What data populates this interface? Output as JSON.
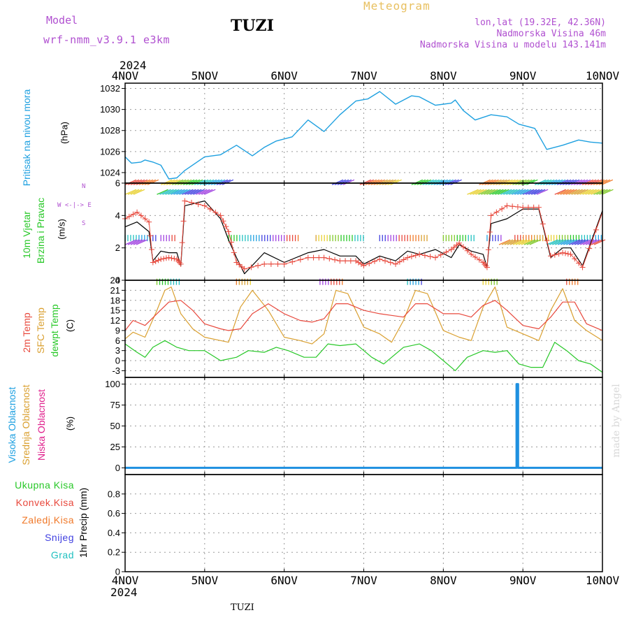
{
  "header": {
    "model_label": "Model",
    "model_name": "wrf-nmm_v3.9.1 e3km",
    "station": "TUZI",
    "product": "Meteogram",
    "coords": "lon,lat (19.32E, 42.36N)",
    "elevation": "Nadmorska Visina 46m",
    "model_elevation": "Nadmorska Visina u modelu 143.141m",
    "footer_station": "TUZI",
    "credit": "made by Angel"
  },
  "time_axis": {
    "year": "2024",
    "days": [
      "4NOV",
      "5NOV",
      "6NOV",
      "7NOV",
      "8NOV",
      "9NOV",
      "10NOV"
    ]
  },
  "colors": {
    "pressure": "#1ea0e0",
    "t2m": "#e8483c",
    "sfc": "#daa030",
    "dewpt": "#28c828",
    "wind_speed": "#000000",
    "gust": "#e8483c",
    "high_cloud": "#1e90e0",
    "mid_cloud": "#daa030",
    "low_cloud": "#e0208c",
    "total_precip": "#28c828",
    "conv_precip": "#e8483c",
    "frz_precip": "#f07828",
    "snow": "#4040e0",
    "hail": "#20c0c0"
  },
  "chart_data": [
    {
      "type": "line",
      "panel": "pressure",
      "ylabel_lines": [
        "Pritisak na nivou mora"
      ],
      "unit": "(hPa)",
      "ylim": [
        1023,
        1032.5
      ],
      "yticks": [
        1024,
        1026,
        1028,
        1030,
        1032
      ],
      "grid": true,
      "series": [
        {
          "x": [
            0,
            0.08,
            0.2,
            0.25,
            0.35,
            0.45,
            0.55,
            0.65,
            0.75,
            1.0,
            1.2,
            1.4,
            1.6,
            1.75,
            1.9,
            2.1,
            2.3,
            2.5,
            2.7,
            2.9,
            3.05,
            3.2,
            3.4,
            3.6,
            3.7,
            3.9,
            4.1,
            4.15,
            4.25,
            4.4,
            4.6,
            4.8,
            4.95,
            5.15,
            5.3,
            5.5,
            5.7,
            5.85,
            6.0
          ],
          "y": [
            1025.5,
            1024.9,
            1025.0,
            1025.2,
            1025.0,
            1024.7,
            1023.4,
            1023.5,
            1024.2,
            1025.5,
            1025.7,
            1026.6,
            1025.6,
            1026.4,
            1027.0,
            1027.4,
            1029.0,
            1027.9,
            1029.5,
            1030.8,
            1031.0,
            1031.7,
            1030.5,
            1031.3,
            1031.2,
            1030.4,
            1030.6,
            1030.9,
            1029.9,
            1029.0,
            1029.5,
            1029.3,
            1028.6,
            1028.2,
            1026.2,
            1026.6,
            1027.1,
            1026.9,
            1026.8
          ]
        }
      ]
    },
    {
      "type": "line",
      "panel": "wind",
      "ylabel_lines": [
        "10m Vjetar",
        "Brzina i Pravac"
      ],
      "unit": "(m/s)",
      "compass": [
        "N",
        "W <-|-> E",
        "S"
      ],
      "ylim": [
        0,
        6
      ],
      "yticks": [
        0,
        2,
        4,
        6
      ],
      "grid": true,
      "series": [
        {
          "name": "speed",
          "x": [
            0,
            0.15,
            0.3,
            0.35,
            0.45,
            0.55,
            0.65,
            0.7,
            0.75,
            1.0,
            1.2,
            1.3,
            1.4,
            1.5,
            1.75,
            2.0,
            2.3,
            2.5,
            2.7,
            2.9,
            3.0,
            3.2,
            3.4,
            3.55,
            3.7,
            3.9,
            4.1,
            4.2,
            4.35,
            4.5,
            4.55,
            4.6,
            4.8,
            5.0,
            5.2,
            5.35,
            5.5,
            5.6,
            5.75,
            6.0
          ],
          "y": [
            3.3,
            3.6,
            3.0,
            1.2,
            1.8,
            1.7,
            1.7,
            0.9,
            4.6,
            4.9,
            3.8,
            2.5,
            1.4,
            0.4,
            1.7,
            1.1,
            1.7,
            1.9,
            1.5,
            1.5,
            1.0,
            1.5,
            1.2,
            1.8,
            1.6,
            1.9,
            1.4,
            2.2,
            1.8,
            1.6,
            0.8,
            3.5,
            3.8,
            4.4,
            4.4,
            1.4,
            2.0,
            2.0,
            0.9,
            4.3
          ]
        },
        {
          "name": "gust",
          "x": [
            0,
            0.15,
            0.3,
            0.35,
            0.45,
            0.55,
            0.65,
            0.7,
            0.75,
            1.0,
            1.2,
            1.3,
            1.4,
            1.5,
            1.75,
            2.0,
            2.3,
            2.5,
            2.7,
            2.9,
            3.0,
            3.2,
            3.4,
            3.55,
            3.7,
            3.9,
            4.1,
            4.2,
            4.35,
            4.5,
            4.55,
            4.6,
            4.8,
            5.0,
            5.2,
            5.35,
            5.5,
            5.6,
            5.75,
            6.0
          ],
          "y": [
            3.8,
            4.2,
            3.6,
            1.1,
            1.3,
            1.4,
            1.3,
            1.0,
            4.9,
            4.6,
            4.0,
            3.0,
            1.1,
            0.7,
            1.0,
            1.0,
            1.4,
            1.4,
            1.2,
            1.2,
            0.9,
            1.3,
            1.0,
            1.4,
            1.6,
            1.4,
            1.9,
            2.3,
            1.6,
            1.1,
            0.8,
            4.0,
            4.6,
            4.5,
            4.5,
            1.5,
            1.7,
            1.6,
            0.8,
            4.2
          ]
        }
      ]
    },
    {
      "type": "line",
      "panel": "temperature",
      "ylabel_lines": [
        "2m Temp",
        "SFC Temp",
        "dewpt Temp"
      ],
      "unit": "(C)",
      "ylim": [
        -5,
        24
      ],
      "yticks": [
        -3,
        0,
        3,
        6,
        9,
        12,
        15,
        18,
        21,
        24
      ],
      "grid": true,
      "series": [
        {
          "name": "2m Temp",
          "x": [
            0,
            0.1,
            0.25,
            0.4,
            0.55,
            0.7,
            0.85,
            1.0,
            1.2,
            1.3,
            1.45,
            1.6,
            1.8,
            2.0,
            2.2,
            2.35,
            2.5,
            2.65,
            2.8,
            3.0,
            3.2,
            3.35,
            3.5,
            3.65,
            3.8,
            4.0,
            4.2,
            4.35,
            4.5,
            4.65,
            4.8,
            5.0,
            5.2,
            5.35,
            5.5,
            5.65,
            5.8,
            6.0
          ],
          "y": [
            9,
            12,
            10.5,
            14,
            17.5,
            18,
            15,
            11,
            9.5,
            9.0,
            9.5,
            14,
            17,
            14,
            12,
            11.5,
            12.5,
            17,
            17,
            15,
            14,
            13.5,
            13,
            17,
            17,
            14,
            14,
            13,
            16.5,
            18,
            15,
            10.5,
            9.5,
            13,
            17.5,
            17.5,
            11,
            9
          ]
        },
        {
          "name": "SFC Temp",
          "x": [
            0,
            0.1,
            0.25,
            0.4,
            0.5,
            0.58,
            0.7,
            0.85,
            1.0,
            1.2,
            1.3,
            1.45,
            1.6,
            1.8,
            2.0,
            2.2,
            2.35,
            2.5,
            2.65,
            2.8,
            3.0,
            3.2,
            3.35,
            3.5,
            3.65,
            3.8,
            4.0,
            4.2,
            4.35,
            4.5,
            4.65,
            4.8,
            5.0,
            5.2,
            5.35,
            5.5,
            5.65,
            5.8,
            6.0
          ],
          "y": [
            6.5,
            8.5,
            7,
            15,
            21,
            22,
            14,
            9.5,
            7,
            6,
            5.5,
            16,
            21,
            15,
            7,
            6,
            5,
            8,
            21,
            20,
            10,
            8,
            5.5,
            12,
            21,
            20,
            9,
            7,
            6,
            16,
            22,
            10,
            8,
            6,
            15,
            21.5,
            12,
            9,
            6
          ]
        },
        {
          "name": "dewpt Temp",
          "x": [
            0,
            0.15,
            0.25,
            0.35,
            0.5,
            0.65,
            0.8,
            1.0,
            1.2,
            1.4,
            1.55,
            1.75,
            1.9,
            2.05,
            2.25,
            2.4,
            2.55,
            2.7,
            2.9,
            3.1,
            3.25,
            3.5,
            3.7,
            3.85,
            4.0,
            4.15,
            4.3,
            4.5,
            4.65,
            4.8,
            4.95,
            5.1,
            5.25,
            5.4,
            5.55,
            5.7,
            5.85,
            6.0
          ],
          "y": [
            5,
            2.5,
            1,
            4,
            6,
            4,
            3,
            3,
            0,
            1,
            3,
            2.5,
            4,
            3,
            1,
            1,
            5,
            4.5,
            5,
            1,
            -1,
            4,
            5,
            3,
            0,
            -3,
            1,
            3,
            2.5,
            3,
            -1,
            -2,
            -2,
            5.5,
            3,
            0,
            -1,
            -3.5
          ]
        }
      ]
    },
    {
      "type": "line",
      "panel": "clouds",
      "ylabel_lines": [
        "Visoka Oblacnost",
        "Srednja Oblacnost",
        "Niska Oblacnost"
      ],
      "unit": "(%)",
      "ylim": [
        -8,
        108
      ],
      "yticks": [
        0,
        25,
        50,
        75,
        100
      ],
      "grid": true,
      "series": [
        {
          "name": "Visoka Oblacnost",
          "x": [
            0,
            4.92,
            4.92,
            4.94,
            4.94,
            6.0
          ],
          "y": [
            0,
            0,
            100,
            100,
            0,
            0
          ]
        },
        {
          "name": "Srednja Oblacnost",
          "x": [
            0,
            6.0
          ],
          "y": [
            0,
            0
          ]
        },
        {
          "name": "Niska Oblacnost",
          "x": [
            0,
            6.0
          ],
          "y": [
            0,
            0
          ]
        }
      ]
    },
    {
      "type": "line",
      "panel": "precipitation",
      "ylabel_lines": [
        "1hr Precip (mm)"
      ],
      "legend": [
        "Ukupna Kisa",
        "Konvek.Kisa",
        "Zaledj.Kisa",
        "Snijeg",
        "Grad"
      ],
      "ylim": [
        0,
        1.0
      ],
      "yticks": [
        0,
        0.2,
        0.4,
        0.6,
        0.8
      ],
      "grid": true,
      "series": []
    }
  ]
}
